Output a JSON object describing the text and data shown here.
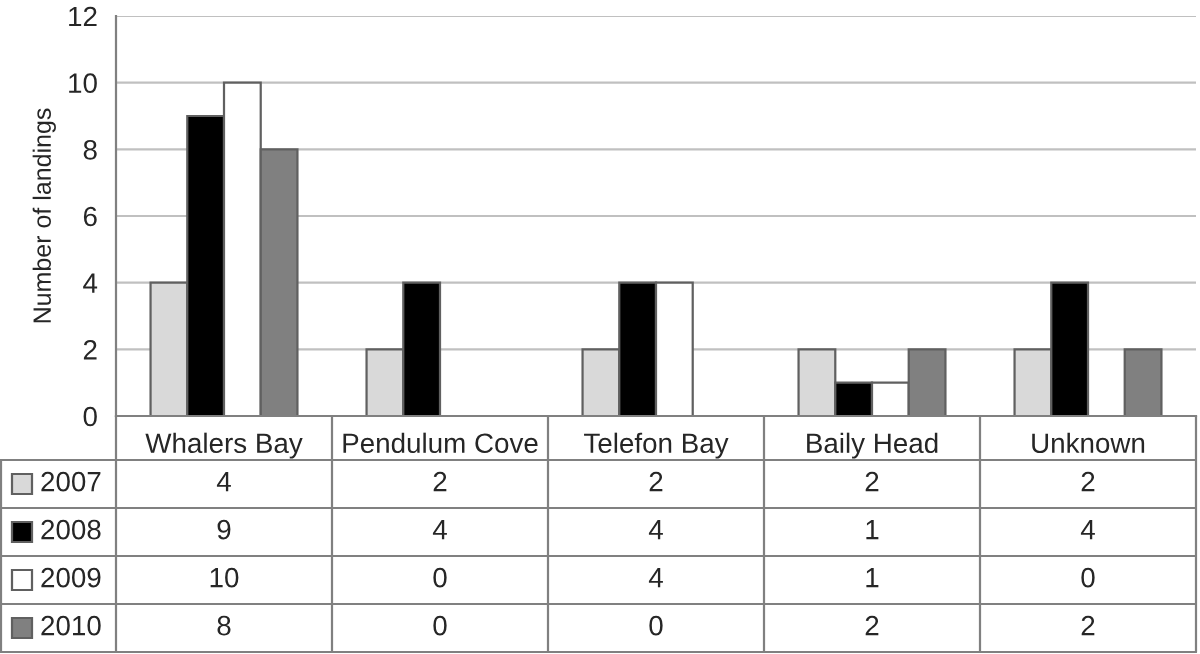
{
  "chart_data": {
    "type": "bar",
    "ylabel": "Number of landings",
    "categories": [
      "Whalers Bay",
      "Pendulum Cove",
      "Telefon Bay",
      "Baily Head",
      "Unknown"
    ],
    "series": [
      {
        "name": "2007",
        "color": "#d9d9d9",
        "values": [
          4,
          2,
          2,
          2,
          2
        ]
      },
      {
        "name": "2008",
        "color": "#000000",
        "values": [
          9,
          4,
          4,
          1,
          4
        ]
      },
      {
        "name": "2009",
        "color": "#ffffff",
        "values": [
          10,
          0,
          4,
          1,
          0
        ]
      },
      {
        "name": "2010",
        "color": "#808080",
        "values": [
          8,
          0,
          0,
          2,
          2
        ]
      }
    ],
    "ylim": [
      0,
      12
    ],
    "yticks": [
      0,
      2,
      4,
      6,
      8,
      10,
      12
    ],
    "grid": "y",
    "legend": "bottom",
    "data_labels": true
  }
}
